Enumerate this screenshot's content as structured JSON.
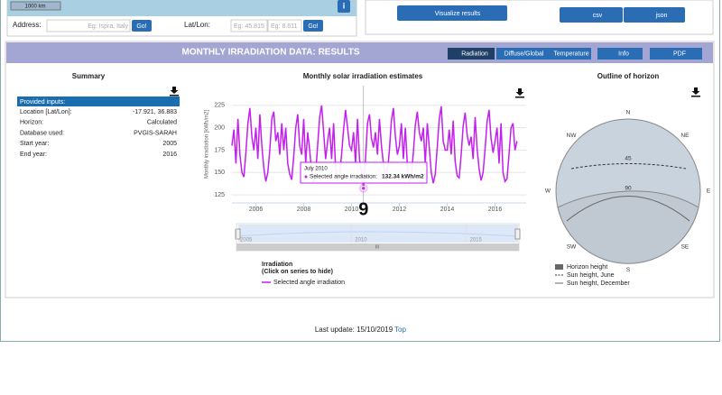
{
  "map": {
    "scale": "1000 km",
    "info": "i"
  },
  "search": {
    "address_label": "Address:",
    "address_placeholder": "Eg: Ispra, Italy",
    "go": "Go!",
    "latlon_label": "Lat/Lon:",
    "lat_placeholder": "Eg: 45.815",
    "lon_placeholder": "Eg: 8.611",
    "go2": "Go!"
  },
  "actions": {
    "visualize": "Visualize results",
    "csv": "csv",
    "json": "json"
  },
  "panel": {
    "title": "MONTHLY IRRADIATION DATA: RESULTS",
    "tabs": [
      "Radiation",
      "Diffuse/Global",
      "Temperature",
      "Info",
      "PDF"
    ]
  },
  "summary": {
    "title": "Summary",
    "header": "Provided inputs:",
    "rows": [
      [
        "Location [Lat/Lon]:",
        "-17.921, 36.883"
      ],
      [
        "Horizon:",
        "Calculated"
      ],
      [
        "Database used:",
        "PVGIS-SARAH"
      ],
      [
        "Start year:",
        "2005"
      ],
      [
        "End year:",
        "2016"
      ]
    ]
  },
  "chart_data": {
    "type": "line",
    "title": "Monthly solar irradiation estimates",
    "y_label": "Monthly irradiation [kWh/m2]",
    "x": [
      2005,
      2005.083,
      2005.167,
      2005.25,
      2005.333,
      2005.417,
      2005.5,
      2005.583,
      2005.667,
      2005.75,
      2005.833,
      2005.917,
      2006,
      2006.083,
      2006.167,
      2006.25,
      2006.333,
      2006.417,
      2006.5,
      2006.583,
      2006.667,
      2006.75,
      2006.833,
      2006.917,
      2007,
      2007.083,
      2007.167,
      2007.25,
      2007.333,
      2007.417,
      2007.5,
      2007.583,
      2007.667,
      2007.75,
      2007.833,
      2007.917,
      2008,
      2008.083,
      2008.167,
      2008.25,
      2008.333,
      2008.417,
      2008.5,
      2008.583,
      2008.667,
      2008.75,
      2008.833,
      2008.917,
      2009,
      2009.083,
      2009.167,
      2009.25,
      2009.333,
      2009.417,
      2009.5,
      2009.583,
      2009.667,
      2009.75,
      2009.833,
      2009.917,
      2010,
      2010.083,
      2010.167,
      2010.25,
      2010.333,
      2010.417,
      2010.5,
      2010.583,
      2010.667,
      2010.75,
      2010.833,
      2010.917,
      2011,
      2011.083,
      2011.167,
      2011.25,
      2011.333,
      2011.417,
      2011.5,
      2011.583,
      2011.667,
      2011.75,
      2011.833,
      2011.917,
      2012,
      2012.083,
      2012.167,
      2012.25,
      2012.333,
      2012.417,
      2012.5,
      2012.583,
      2012.667,
      2012.75,
      2012.833,
      2012.917,
      2013,
      2013.083,
      2013.167,
      2013.25,
      2013.333,
      2013.417,
      2013.5,
      2013.583,
      2013.667,
      2013.75,
      2013.833,
      2013.917,
      2014,
      2014.083,
      2014.167,
      2014.25,
      2014.333,
      2014.417,
      2014.5,
      2014.583,
      2014.667,
      2014.75,
      2014.833,
      2014.917,
      2015,
      2015.083,
      2015.167,
      2015.25,
      2015.333,
      2015.417,
      2015.5,
      2015.583,
      2015.667,
      2015.75,
      2015.833,
      2015.917,
      2016,
      2016.083,
      2016.167,
      2016.25,
      2016.333,
      2016.417,
      2016.5,
      2016.583,
      2016.667,
      2016.75,
      2016.833,
      2016.917
    ],
    "series": [
      {
        "name": "Selected angle irradiation",
        "color": "#c41ef0",
        "values": [
          180,
          198,
          160,
          210,
          170,
          150,
          145,
          172,
          205,
          222,
          190,
          175,
          200,
          165,
          215,
          180,
          155,
          140,
          150,
          175,
          210,
          218,
          185,
          195,
          170,
          205,
          175,
          200,
          160,
          148,
          142,
          168,
          200,
          215,
          180,
          170,
          210,
          160,
          195,
          175,
          150,
          138,
          150,
          180,
          212,
          225,
          195,
          165,
          185,
          200,
          165,
          205,
          155,
          145,
          148,
          170,
          198,
          220,
          200,
          180,
          175,
          195,
          160,
          210,
          165,
          150,
          132.34,
          165,
          205,
          215,
          188,
          178,
          195,
          170,
          210,
          180,
          160,
          142,
          150,
          175,
          208,
          222,
          190,
          170,
          180,
          205,
          165,
          200,
          158,
          140,
          146,
          172,
          203,
          218,
          195,
          185,
          200,
          160,
          205,
          178,
          150,
          138,
          148,
          178,
          210,
          224,
          185,
          175,
          175,
          198,
          170,
          208,
          162,
          146,
          144,
          170,
          202,
          217,
          192,
          180,
          190,
          165,
          212,
          176,
          154,
          141,
          150,
          176,
          207,
          220,
          188,
          172,
          185,
          200,
          160,
          205,
          150,
          140,
          143,
          170,
          200,
          205,
          175,
          185
        ]
      }
    ],
    "xlim": [
      2005,
      2017.3
    ],
    "xticks": [
      2006,
      2008,
      2010,
      2012,
      2014,
      2016
    ],
    "ylim": [
      116,
      242
    ],
    "yticks": [
      125,
      150,
      175,
      200,
      225
    ],
    "grid": true,
    "tooltip": {
      "date": "July 2010",
      "label": "Selected angle irradiation:",
      "value": "132.34 kWh/m2"
    },
    "annotation": "9",
    "legend_title": "Irradiation",
    "legend_subtitle": "(Click on series to hide)",
    "navigator_ticks": [
      2005,
      2010,
      2015
    ],
    "navigator_handle": "III"
  },
  "horizon": {
    "title": "Outline of horizon",
    "directions": [
      "N",
      "NE",
      "E",
      "SE",
      "S",
      "SW",
      "W",
      "NW"
    ],
    "rings": [
      "45",
      "90"
    ],
    "legend": [
      "Horizon height",
      "Sun height, June",
      "Sun height, December"
    ]
  },
  "footer": {
    "text": "Last update: 15/10/2019",
    "link": "Top"
  }
}
